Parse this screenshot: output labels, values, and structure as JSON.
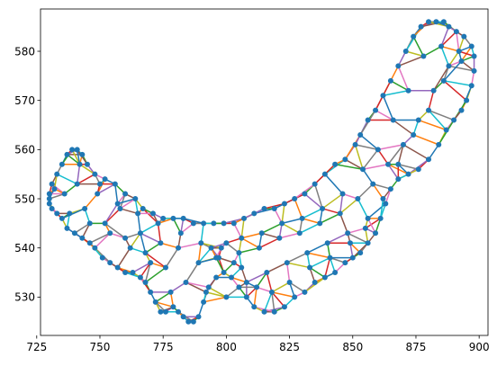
{
  "chart_data": {
    "type": "line",
    "title": "",
    "xlabel": "",
    "ylabel": "",
    "xlim": [
      726.5,
      903.5
    ],
    "ylim": [
      522.2,
      588.6
    ],
    "x_ticks": [
      725,
      750,
      775,
      800,
      825,
      850,
      875,
      900
    ],
    "y_ticks": [
      530,
      540,
      550,
      560,
      570,
      580
    ],
    "x_tick_labels": [
      "725",
      "750",
      "775",
      "800",
      "825",
      "850",
      "875",
      "900"
    ],
    "y_tick_labels": [
      "530",
      "540",
      "550",
      "560",
      "570",
      "580"
    ],
    "grid": false,
    "legend": "none",
    "marker_color": "#1f77b4",
    "line_colors": [
      "#1f77b4",
      "#ff7f0e",
      "#2ca02c",
      "#d62728",
      "#9467bd",
      "#8c564b",
      "#e377c2",
      "#7f7f7f",
      "#bcbd22",
      "#17becf"
    ],
    "points": [
      [
        730,
        551
      ],
      [
        731,
        553
      ],
      [
        733,
        555
      ],
      [
        735,
        557
      ],
      [
        737,
        559
      ],
      [
        739,
        560
      ],
      [
        741,
        560
      ],
      [
        743,
        559
      ],
      [
        745,
        557
      ],
      [
        748,
        555
      ],
      [
        752,
        554
      ],
      [
        756,
        553
      ],
      [
        760,
        551
      ],
      [
        764,
        550
      ],
      [
        767,
        548
      ],
      [
        771,
        547
      ],
      [
        775,
        546
      ],
      [
        779,
        546
      ],
      [
        783,
        546
      ],
      [
        787,
        545
      ],
      [
        791,
        545
      ],
      [
        795,
        545
      ],
      [
        799,
        545
      ],
      [
        803,
        545
      ],
      [
        807,
        546
      ],
      [
        811,
        547
      ],
      [
        815,
        548
      ],
      [
        819,
        548
      ],
      [
        823,
        549
      ],
      [
        827,
        550
      ],
      [
        831,
        551
      ],
      [
        835,
        553
      ],
      [
        839,
        555
      ],
      [
        843,
        557
      ],
      [
        847,
        558
      ],
      [
        851,
        561
      ],
      [
        853,
        563
      ],
      [
        856,
        566
      ],
      [
        859,
        568
      ],
      [
        862,
        571
      ],
      [
        865,
        574
      ],
      [
        868,
        577
      ],
      [
        871,
        580
      ],
      [
        874,
        583
      ],
      [
        877,
        585
      ],
      [
        880,
        586
      ],
      [
        883,
        586
      ],
      [
        886,
        586
      ],
      [
        888,
        585
      ],
      [
        891,
        584
      ],
      [
        894,
        583
      ],
      [
        897,
        581
      ],
      [
        898,
        579
      ],
      [
        898,
        576
      ],
      [
        897,
        573
      ],
      [
        895,
        570
      ],
      [
        893,
        568
      ],
      [
        890,
        566
      ],
      [
        887,
        564
      ],
      [
        884,
        561
      ],
      [
        880,
        558
      ],
      [
        876,
        556
      ],
      [
        872,
        555
      ],
      [
        868,
        554
      ],
      [
        865,
        552
      ],
      [
        863,
        549
      ],
      [
        861,
        546
      ],
      [
        859,
        543
      ],
      [
        856,
        541
      ],
      [
        853,
        539
      ],
      [
        850,
        538
      ],
      [
        847,
        537
      ],
      [
        843,
        535
      ],
      [
        839,
        534
      ],
      [
        835,
        533
      ],
      [
        831,
        531
      ],
      [
        827,
        530
      ],
      [
        823,
        528
      ],
      [
        819,
        527
      ],
      [
        815,
        527
      ],
      [
        811,
        528
      ],
      [
        808,
        530
      ],
      [
        805,
        532
      ],
      [
        802,
        534
      ],
      [
        799,
        535
      ],
      [
        796,
        534
      ],
      [
        793,
        532
      ],
      [
        791,
        529
      ],
      [
        789,
        526
      ],
      [
        787,
        525
      ],
      [
        785,
        525
      ],
      [
        783,
        526
      ],
      [
        781,
        527
      ],
      [
        779,
        528
      ],
      [
        776,
        527
      ],
      [
        774,
        527
      ],
      [
        772,
        529
      ],
      [
        770,
        531
      ],
      [
        768,
        533
      ],
      [
        766,
        534
      ],
      [
        763,
        535
      ],
      [
        760,
        535
      ],
      [
        757,
        536
      ],
      [
        754,
        537
      ],
      [
        751,
        538
      ],
      [
        748,
        540
      ],
      [
        746,
        541
      ],
      [
        743,
        542
      ],
      [
        740,
        543
      ],
      [
        737,
        544
      ],
      [
        735,
        546
      ],
      [
        733,
        547
      ],
      [
        731,
        548
      ],
      [
        730,
        549
      ],
      [
        730,
        550
      ],
      [
        732,
        552
      ],
      [
        742,
        557
      ],
      [
        750,
        553
      ],
      [
        758,
        548
      ],
      [
        766,
        543
      ],
      [
        774,
        541
      ],
      [
        781,
        540
      ],
      [
        789,
        537
      ],
      [
        797,
        538
      ],
      [
        805,
        539
      ],
      [
        813,
        540
      ],
      [
        821,
        542
      ],
      [
        829,
        543
      ],
      [
        837,
        545
      ],
      [
        845,
        547
      ],
      [
        852,
        550
      ],
      [
        858,
        553
      ],
      [
        864,
        557
      ],
      [
        870,
        561
      ],
      [
        876,
        566
      ],
      [
        882,
        572
      ],
      [
        888,
        577
      ],
      [
        893,
        578
      ],
      [
        885,
        581
      ],
      [
        878,
        579
      ],
      [
        872,
        572
      ],
      [
        866,
        566
      ],
      [
        860,
        560
      ],
      [
        854,
        556
      ],
      [
        846,
        551
      ],
      [
        838,
        548
      ],
      [
        830,
        546
      ],
      [
        822,
        545
      ],
      [
        814,
        543
      ],
      [
        806,
        542
      ],
      [
        798,
        540
      ],
      [
        790,
        541
      ],
      [
        782,
        543
      ],
      [
        773,
        545
      ],
      [
        765,
        547
      ],
      [
        757,
        549
      ],
      [
        749,
        551
      ],
      [
        741,
        553
      ],
      [
        736,
        551
      ],
      [
        744,
        548
      ],
      [
        752,
        545
      ],
      [
        760,
        542
      ],
      [
        768,
        539
      ],
      [
        776,
        536
      ],
      [
        784,
        533
      ],
      [
        792,
        531
      ],
      [
        800,
        530
      ],
      [
        808,
        533
      ],
      [
        816,
        535
      ],
      [
        824,
        537
      ],
      [
        832,
        539
      ],
      [
        840,
        541
      ],
      [
        848,
        543
      ],
      [
        856,
        546
      ],
      [
        862,
        550
      ],
      [
        868,
        557
      ],
      [
        874,
        563
      ],
      [
        880,
        568
      ],
      [
        886,
        574
      ],
      [
        892,
        580
      ],
      [
        796,
        538
      ],
      [
        803,
        537
      ],
      [
        800,
        541
      ],
      [
        794,
        540
      ],
      [
        806,
        536
      ],
      [
        812,
        532
      ],
      [
        818,
        531
      ],
      [
        825,
        533
      ],
      [
        833,
        536
      ],
      [
        841,
        538
      ],
      [
        849,
        541
      ],
      [
        855,
        544
      ],
      [
        778,
        531
      ],
      [
        770,
        537
      ],
      [
        762,
        540
      ],
      [
        754,
        543
      ],
      [
        746,
        545
      ],
      [
        738,
        547
      ]
    ]
  }
}
